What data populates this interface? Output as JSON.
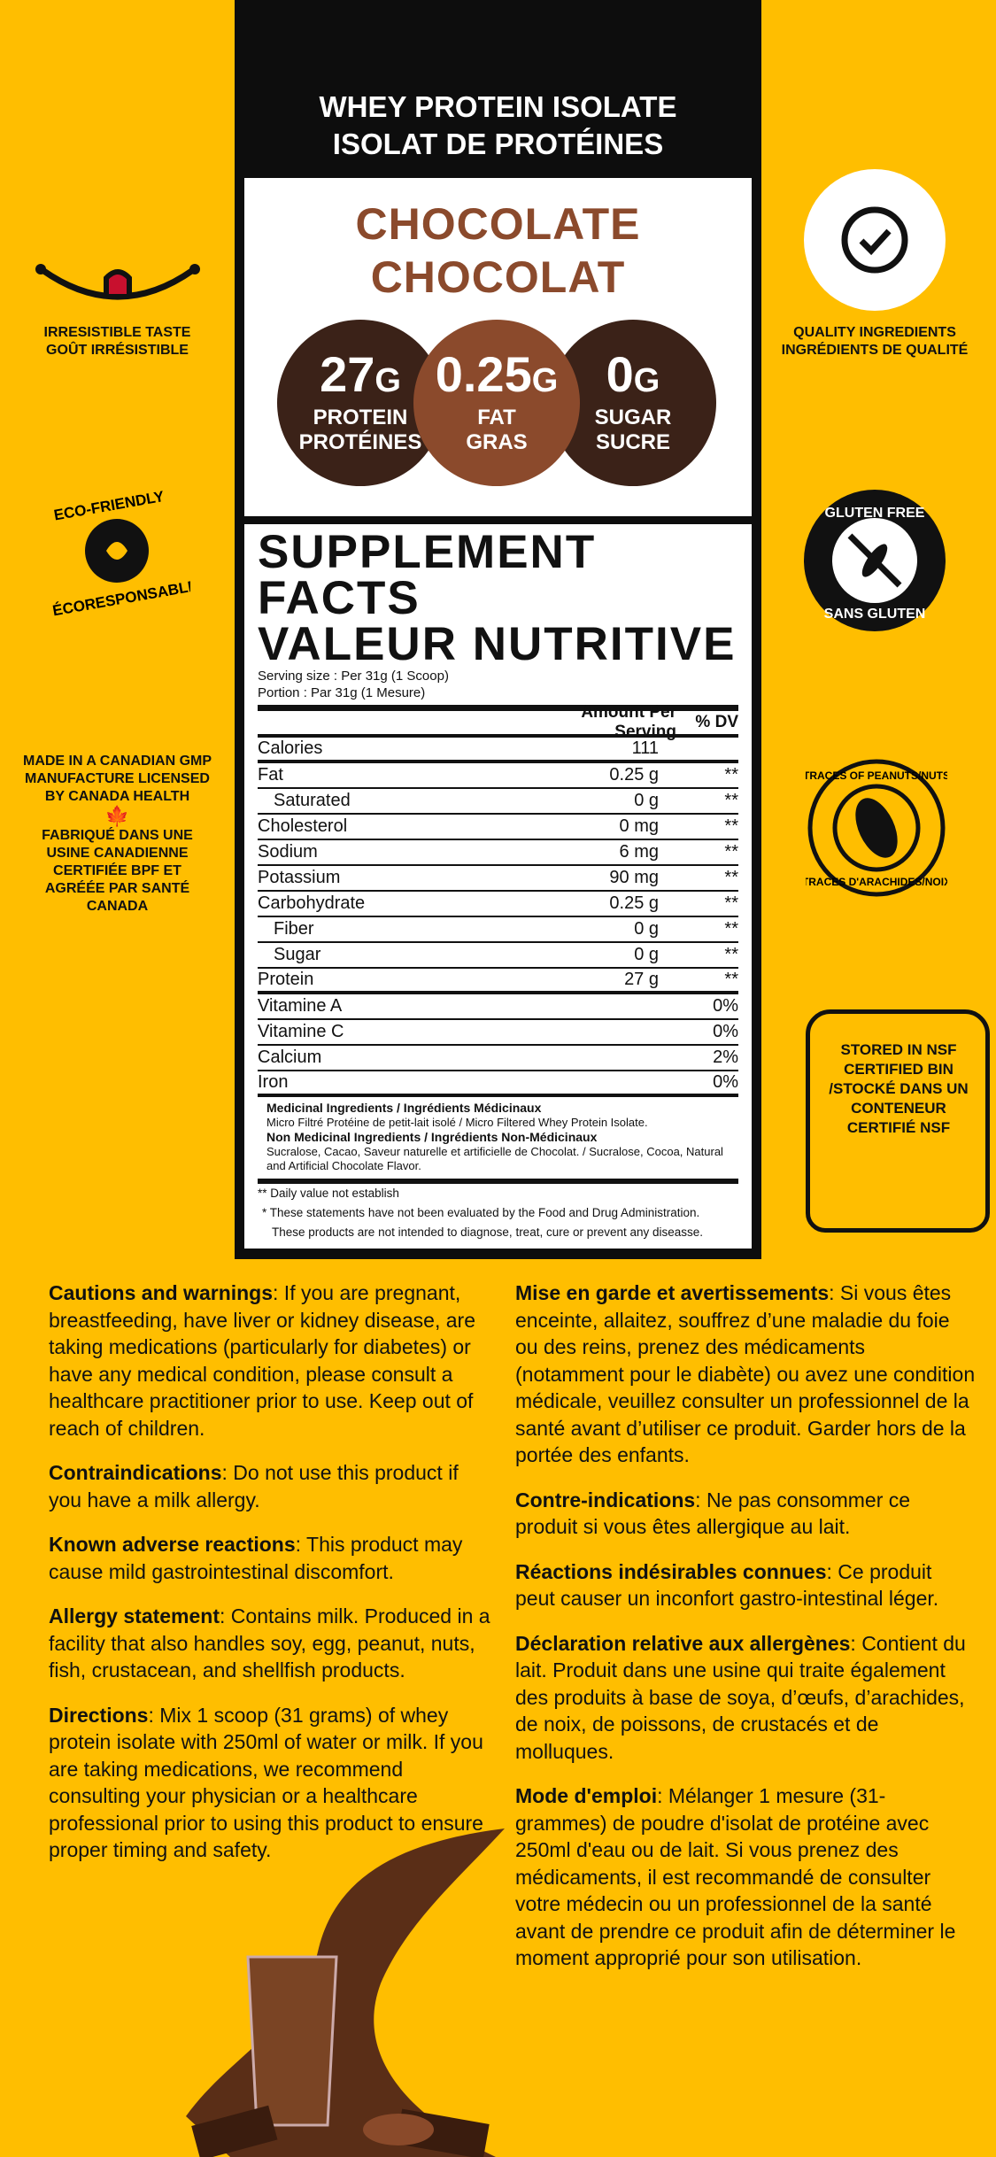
{
  "header": {
    "line1": "WHEY PROTEIN ISOLATE",
    "line2": "ISOLAT DE PROTÉINES"
  },
  "flavor": {
    "en": "CHOCOLATE",
    "fr": "CHOCOLAT",
    "color": "#8B4A2C"
  },
  "highlights": [
    {
      "value": "27",
      "unit": "G",
      "en": "PROTEIN",
      "fr": "PROTÉINES",
      "color": "#3B2218"
    },
    {
      "value": "0.25",
      "unit": "G",
      "en": "FAT",
      "fr": "GRAS",
      "color": "#8B4A2C"
    },
    {
      "value": "0",
      "unit": "G",
      "en": "SUGAR",
      "fr": "SUCRE",
      "color": "#3B2218"
    }
  ],
  "badges": {
    "taste": {
      "en": "IRRESISTIBLE TASTE",
      "fr": "GOÛT IRRÉSISTIBLE",
      "icon": "smile-icon"
    },
    "quality": {
      "en": "QUALITY INGREDIENTS",
      "fr": "INGRÉDIENTS DE QUALITÉ",
      "icon": "check-badge-icon"
    },
    "eco": {
      "en": "ECO-FRIENDLY",
      "fr": "ÉCORESPONSABLE",
      "icon": "recycle-leaf-icon"
    },
    "gluten": {
      "en": "GLUTEN FREE",
      "fr": "SANS GLUTEN",
      "icon": "no-wheat-icon"
    },
    "canada": {
      "en": "MADE IN A CANADIAN GMP MANUFACTURE LICENSED BY CANADA HEALTH",
      "fr": "FABRIQUÉ DANS UNE USINE CANADIENNE CERTIFIÉE BPF ET AGRÉÉE PAR SANTÉ CANADA",
      "icon": "maple-leaf-icon"
    },
    "peanuts": {
      "en": "TRACES OF PEANUTS/NUTS",
      "fr": "TRACES D'ARACHIDES/NOIX",
      "icon": "peanut-icon"
    },
    "nsf": {
      "text": "STORED IN NSF CERTIFIED BIN /STOCKÉ DANS UN CONTENEUR CERTIFIÉ NSF",
      "icon": "bin-icon"
    }
  },
  "facts": {
    "title1": "SUPPLEMENT FACTS",
    "title2": "VALEUR NUTRITIVE",
    "serving_en": "Serving size : Per 31g (1 Scoop)",
    "serving_fr": "Portion : Par 31g (1 Mesure)",
    "col_amount": "Amount Per Serving",
    "col_dv": "% DV",
    "rows": [
      {
        "name": "Calories",
        "amount": "111",
        "dv": ""
      },
      {
        "name": "Fat",
        "amount": "0.25 g",
        "dv": "**"
      },
      {
        "name": "Saturated",
        "amount": "0 g",
        "dv": "**"
      },
      {
        "name": "Cholesterol",
        "amount": "0 mg",
        "dv": "**"
      },
      {
        "name": "Sodium",
        "amount": "6 mg",
        "dv": "**"
      },
      {
        "name": "Potassium",
        "amount": "90 mg",
        "dv": "**"
      },
      {
        "name": "Carbohydrate",
        "amount": "0.25 g",
        "dv": "**"
      },
      {
        "name": "Fiber",
        "amount": "0 g",
        "dv": "**"
      },
      {
        "name": "Sugar",
        "amount": "0 g",
        "dv": "**"
      },
      {
        "name": "Protein",
        "amount": "27 g",
        "dv": "**"
      },
      {
        "name": "Vitamine A",
        "amount": "",
        "dv": "0%"
      },
      {
        "name": "Vitamine C",
        "amount": "",
        "dv": "0%"
      },
      {
        "name": "Calcium",
        "amount": "",
        "dv": "2%"
      },
      {
        "name": "Iron",
        "amount": "",
        "dv": "0%"
      }
    ],
    "med_title": "Medicinal Ingredients / Ingrédients Médicinaux",
    "med_text": "Micro Filtré Protéine de petit-lait isolé / Micro Filtered Whey Protein Isolate.",
    "nonmed_title": "Non Medicinal Ingredients / Ingrédients Non-Médicinaux",
    "nonmed_text": "Sucralose, Cacao, Saveur naturelle et artificielle de Chocolat. / Sucralose, Cocoa, Natural and Artificial Chocolate Flavor.",
    "note1": "** Daily value not establish",
    "note2": "* These statements have not been evaluated by the Food and Drug Administration.",
    "note3": "These products are not intended to diagnose, treat, cure or prevent any diseasse."
  },
  "en": [
    {
      "h": "Cautions and warnings",
      "t": ": If you are pregnant, breastfeeding, have liver or kidney disease, are taking medications (particularly for diabetes) or have any medical condition, please consult a healthcare practitioner prior to use. Keep out of reach of children."
    },
    {
      "h": "Contraindications",
      "t": ": Do not use this product if you have a milk allergy."
    },
    {
      "h": "Known adverse reactions",
      "t": ": This product may cause mild gastrointestinal discomfort."
    },
    {
      "h": "Allergy statement",
      "t": ": Contains milk. Produced in a facility that also handles soy, egg, peanut, nuts, fish, crustacean, and shellfish products."
    },
    {
      "h": "Directions",
      "t": ": Mix 1 scoop (31 grams) of whey protein isolate with 250ml of water or milk. If you are taking medications, we recommend consulting your physician or a healthcare professional prior to using this product to ensure proper timing and safety."
    }
  ],
  "fr": [
    {
      "h": "Mise en garde et avertissements",
      "t": ": Si vous êtes enceinte, allaitez, souffrez d’une maladie du foie ou des reins, prenez des médicaments (notamment pour le diabète) ou avez une condition médicale, veuillez consulter un professionnel de la santé avant d’utiliser ce produit. Garder hors de la portée des enfants."
    },
    {
      "h": "Contre-indications",
      "t": ": Ne pas consommer ce produit si vous êtes allergique au lait."
    },
    {
      "h": "Réactions indésirables connues",
      "t": ": Ce produit peut causer un inconfort gastro-intestinal léger."
    },
    {
      "h": "Déclaration relative aux allergènes",
      "t": ": Contient du lait. Produit dans une usine qui traite également des produits à base de soya, d’œufs, d’arachides, de noix, de poissons, de crustacés et de molluques."
    },
    {
      "h": "Mode d'emploi",
      "t": ": Mélanger 1 mesure (31-grammes) de poudre d'isolat de protéine avec 250ml d'eau ou de lait. Si vous prenez des médicaments, il est recommandé de consulter votre médecin ou un professionnel de la santé avant de prendre ce produit afin de déterminer le moment approprié pour son utilisation."
    }
  ],
  "colors": {
    "background": "#FFBE00",
    "panel": "#0d0d0d",
    "dark_brown": "#3B2218",
    "brown": "#8B4A2C"
  }
}
